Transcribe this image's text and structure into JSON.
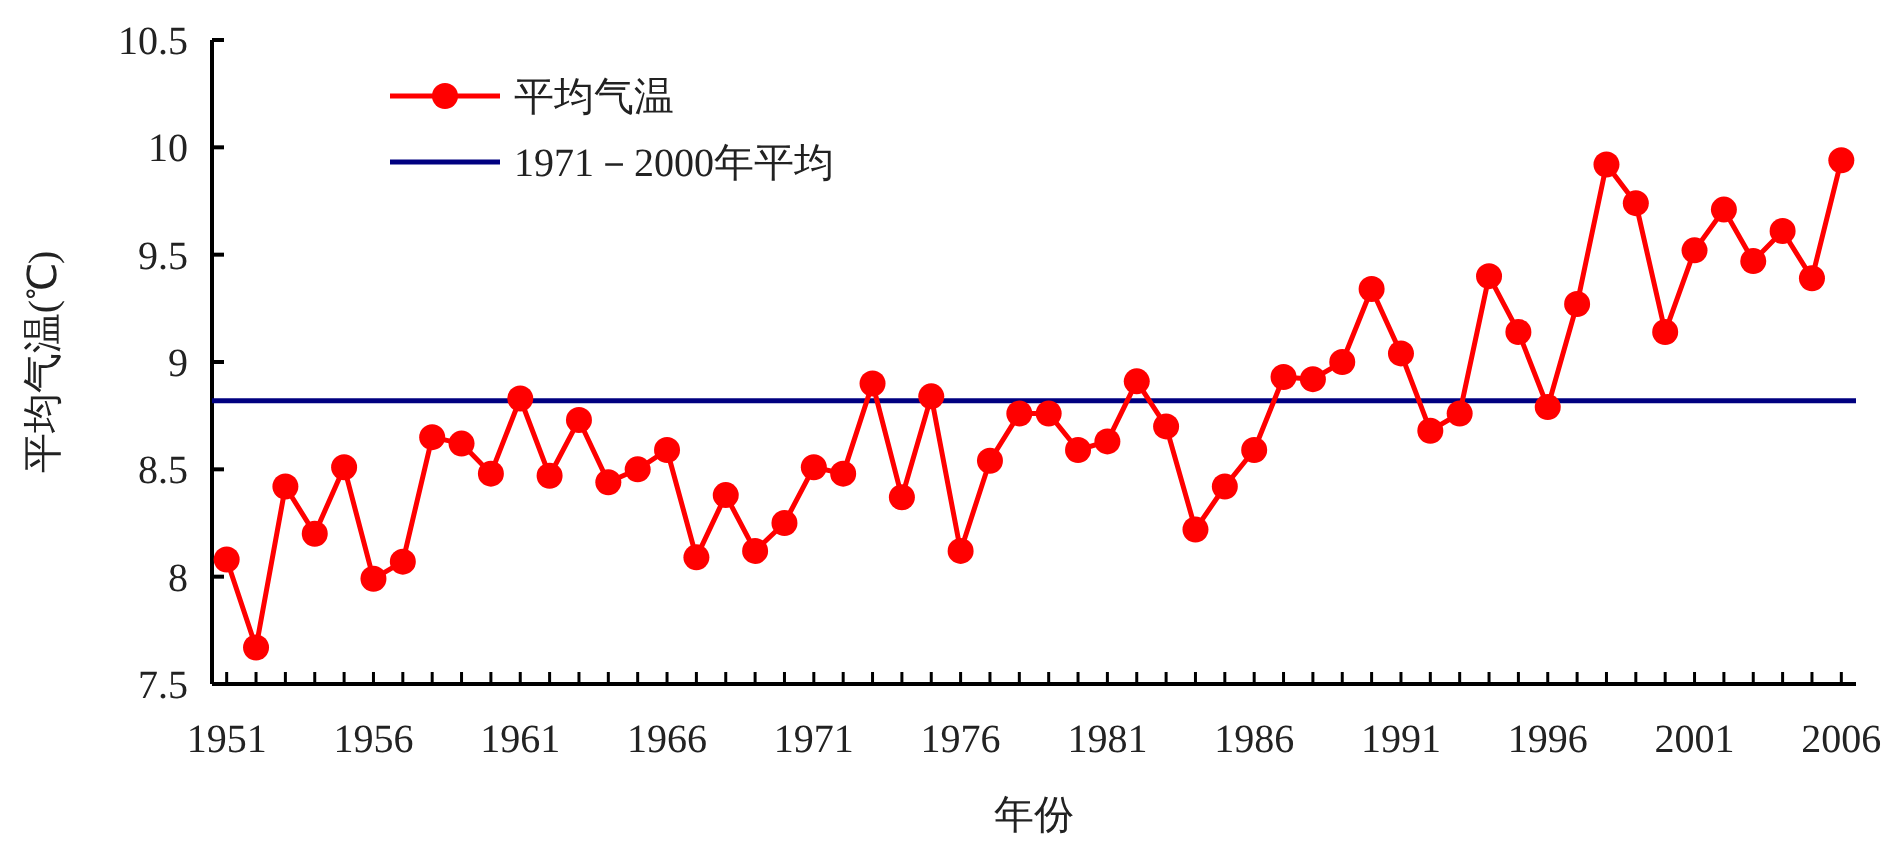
{
  "chart_data": {
    "type": "line",
    "xlabel": "年份",
    "ylabel": "平均气温(℃)",
    "x": [
      1951,
      1952,
      1953,
      1954,
      1955,
      1956,
      1957,
      1958,
      1959,
      1960,
      1961,
      1962,
      1963,
      1964,
      1965,
      1966,
      1967,
      1968,
      1969,
      1970,
      1971,
      1972,
      1973,
      1974,
      1975,
      1976,
      1977,
      1978,
      1979,
      1980,
      1981,
      1982,
      1983,
      1984,
      1985,
      1986,
      1987,
      1988,
      1989,
      1990,
      1991,
      1992,
      1993,
      1994,
      1995,
      1996,
      1997,
      1998,
      1999,
      2000,
      2001,
      2002,
      2003,
      2004,
      2005,
      2006
    ],
    "series": [
      {
        "name": "平均气温",
        "color": "#ff0000",
        "values": [
          8.08,
          7.67,
          8.42,
          8.2,
          8.51,
          7.99,
          8.07,
          8.65,
          8.62,
          8.48,
          8.83,
          8.47,
          8.73,
          8.44,
          8.5,
          8.59,
          8.09,
          8.38,
          8.12,
          8.25,
          8.51,
          8.48,
          8.9,
          8.37,
          8.84,
          8.12,
          8.54,
          8.76,
          8.76,
          8.59,
          8.63,
          8.91,
          8.7,
          8.22,
          8.42,
          8.59,
          8.93,
          8.92,
          9.0,
          9.34,
          9.04,
          8.68,
          8.76,
          9.4,
          9.14,
          8.79,
          9.27,
          9.92,
          9.74,
          9.14,
          9.52,
          9.71,
          9.47,
          9.61,
          9.39,
          9.94
        ]
      }
    ],
    "ref_lines": [
      {
        "axis": "y",
        "value": 8.82,
        "label": "1971－2000年平均",
        "color": "#000080"
      }
    ],
    "xlim": [
      1950.5,
      2006.5
    ],
    "ylim": [
      7.5,
      10.5
    ],
    "xticks": [
      1951,
      {
        "value": 1952,
        "label": null
      },
      {
        "value": 1953,
        "label": null
      },
      {
        "value": 1954,
        "label": null
      },
      {
        "value": 1955,
        "label": null
      },
      1956,
      {
        "value": 1957,
        "label": null
      },
      {
        "value": 1958,
        "label": null
      },
      {
        "value": 1959,
        "label": null
      },
      {
        "value": 1960,
        "label": null
      },
      1961,
      {
        "value": 1962,
        "label": null
      },
      {
        "value": 1963,
        "label": null
      },
      {
        "value": 1964,
        "label": null
      },
      {
        "value": 1965,
        "label": null
      },
      1966,
      {
        "value": 1967,
        "label": null
      },
      {
        "value": 1968,
        "label": null
      },
      {
        "value": 1969,
        "label": null
      },
      {
        "value": 1970,
        "label": null
      },
      1971,
      {
        "value": 1972,
        "label": null
      },
      {
        "value": 1973,
        "label": null
      },
      {
        "value": 1974,
        "label": null
      },
      {
        "value": 1975,
        "label": null
      },
      1976,
      {
        "value": 1977,
        "label": null
      },
      {
        "value": 1978,
        "label": null
      },
      {
        "value": 1979,
        "label": null
      },
      {
        "value": 1980,
        "label": null
      },
      1981,
      {
        "value": 1982,
        "label": null
      },
      {
        "value": 1983,
        "label": null
      },
      {
        "value": 1984,
        "label": null
      },
      {
        "value": 1985,
        "label": null
      },
      1986,
      {
        "value": 1987,
        "label": null
      },
      {
        "value": 1988,
        "label": null
      },
      {
        "value": 1989,
        "label": null
      },
      {
        "value": 1990,
        "label": null
      },
      1991,
      {
        "value": 1992,
        "label": null
      },
      {
        "value": 1993,
        "label": null
      },
      {
        "value": 1994,
        "label": null
      },
      {
        "value": 1995,
        "label": null
      },
      1996,
      {
        "value": 1997,
        "label": null
      },
      {
        "value": 1998,
        "label": null
      },
      {
        "value": 1999,
        "label": null
      },
      {
        "value": 2000,
        "label": null
      },
      2001,
      {
        "value": 2002,
        "label": null
      },
      {
        "value": 2003,
        "label": null
      },
      {
        "value": 2004,
        "label": null
      },
      {
        "value": 2005,
        "label": null
      },
      2006
    ],
    "yticks": [
      7.5,
      8,
      8.5,
      9,
      9.5,
      10,
      10.5
    ],
    "legend": "top left",
    "grid": false,
    "marker": "circle",
    "line_style": "solid"
  }
}
